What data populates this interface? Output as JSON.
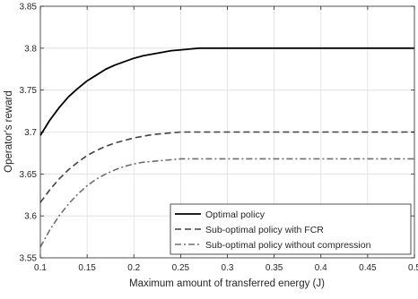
{
  "chart_data": {
    "type": "line",
    "title": "",
    "xlabel": "Maximum amount of transferred energy (J)",
    "ylabel": "Operator's reward",
    "xlim": [
      0.1,
      0.5
    ],
    "ylim": [
      3.55,
      3.85
    ],
    "grid": true,
    "legend_position": "bottom-right",
    "x_ticks": [
      0.1,
      0.15,
      0.2,
      0.25,
      0.3,
      0.35,
      0.4,
      0.45,
      0.5
    ],
    "x_tick_labels": [
      "0.1",
      "0.15",
      "0.2",
      "0.25",
      "0.3",
      "0.35",
      "0.4",
      "0.45",
      "0.5"
    ],
    "y_ticks": [
      3.55,
      3.6,
      3.65,
      3.7,
      3.75,
      3.8,
      3.85
    ],
    "y_tick_labels": [
      "3.55",
      "3.6",
      "3.65",
      "3.7",
      "3.75",
      "3.8",
      "3.85"
    ],
    "x": [
      0.1,
      0.11,
      0.12,
      0.13,
      0.14,
      0.15,
      0.16,
      0.17,
      0.18,
      0.19,
      0.2,
      0.21,
      0.22,
      0.23,
      0.24,
      0.25,
      0.26,
      0.27,
      0.28,
      0.3,
      0.35,
      0.4,
      0.45,
      0.5
    ],
    "series": [
      {
        "name": "Optimal policy",
        "style": "solid",
        "color": "#000000",
        "values": [
          3.696,
          3.714,
          3.729,
          3.742,
          3.752,
          3.761,
          3.768,
          3.775,
          3.78,
          3.784,
          3.788,
          3.791,
          3.793,
          3.795,
          3.797,
          3.798,
          3.799,
          3.8,
          3.8,
          3.8,
          3.8,
          3.8,
          3.8,
          3.8
        ]
      },
      {
        "name": "Sub-optimal policy with FCR",
        "style": "dashed",
        "color": "#404040",
        "values": [
          3.616,
          3.631,
          3.644,
          3.655,
          3.664,
          3.672,
          3.678,
          3.683,
          3.687,
          3.69,
          3.693,
          3.695,
          3.697,
          3.698,
          3.699,
          3.7,
          3.7,
          3.7,
          3.7,
          3.7,
          3.7,
          3.7,
          3.7,
          3.7
        ]
      },
      {
        "name": "Sub-optimal policy without compression",
        "style": "dashdot",
        "color": "#6e6e6e",
        "values": [
          3.563,
          3.583,
          3.6,
          3.614,
          3.626,
          3.636,
          3.644,
          3.65,
          3.655,
          3.659,
          3.662,
          3.664,
          3.665,
          3.666,
          3.667,
          3.668,
          3.668,
          3.668,
          3.668,
          3.668,
          3.668,
          3.668,
          3.668,
          3.668
        ]
      }
    ]
  }
}
